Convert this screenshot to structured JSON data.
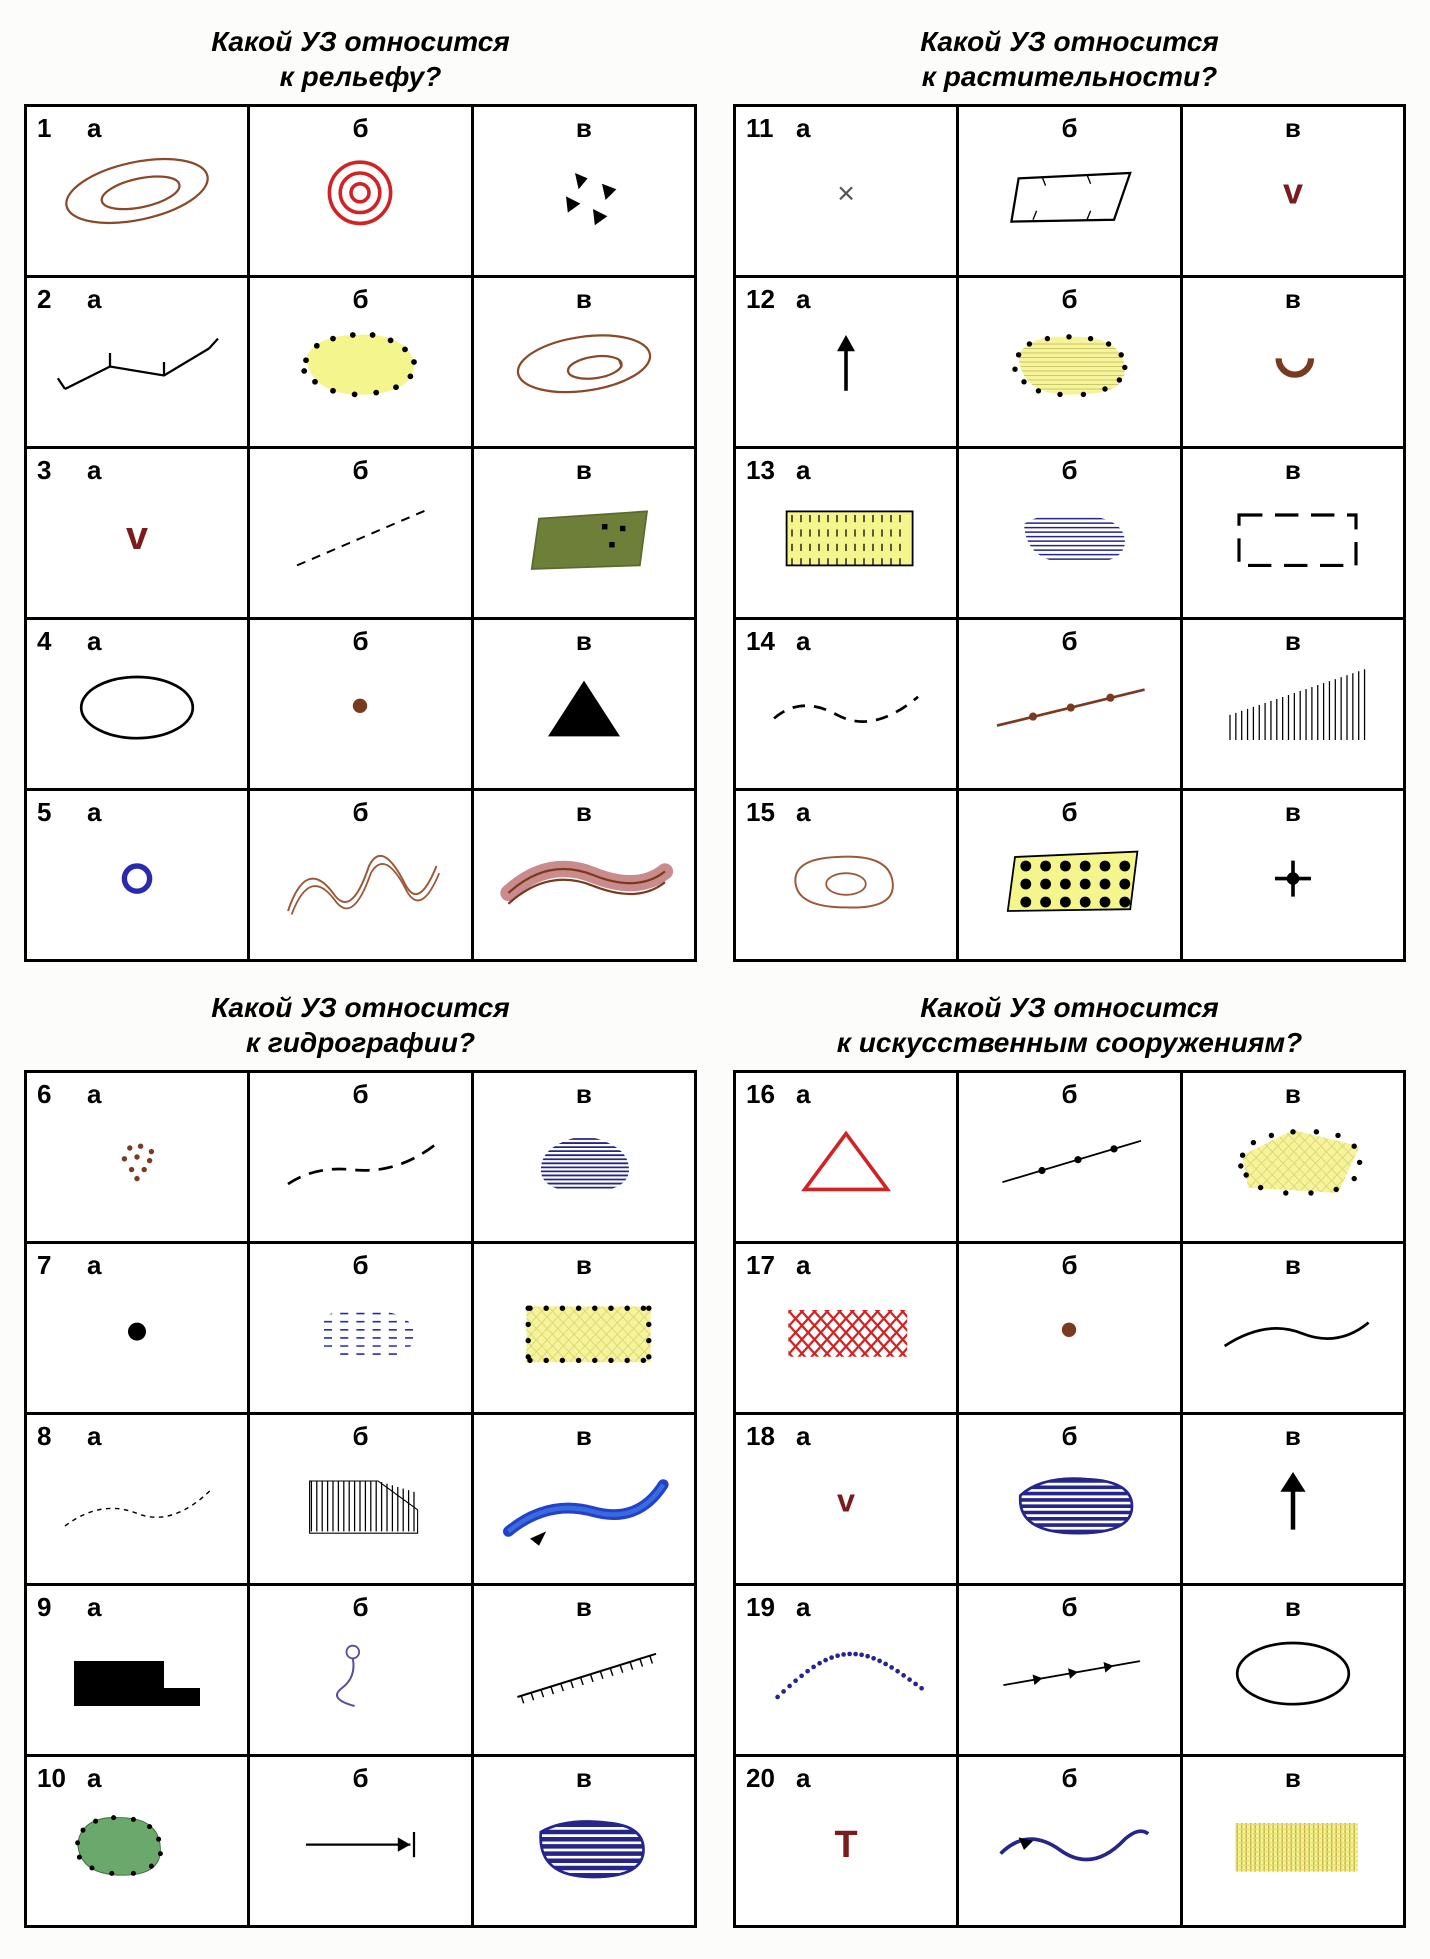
{
  "labels": {
    "a": "а",
    "b": "б",
    "c": "в"
  },
  "palette": {
    "black": "#000000",
    "brown": "#7a3a1f",
    "brown2": "#8a4a2a",
    "sienna": "#9a5a3a",
    "red": "#d12323",
    "darkRed": "#7a1c1c",
    "blue": "#2a2ab0",
    "navyLine": "#25258c",
    "riverBlue": "#2442c8",
    "riverBlueLight": "#3a6ae0",
    "yellowFill": "#f4f58c",
    "yellowFill2": "#f7f39a",
    "olive": "#6e7f3a",
    "oliveDark": "#5a6b2e",
    "green": "#6aa86b",
    "greenBorder": "#3a6e3a",
    "pink": "#c98b8b",
    "grey": "#555555",
    "purpleLine": "#5a4aa0"
  },
  "quadrants": [
    {
      "title": "Какой УЗ относится\nк рельефу?",
      "rows": [
        {
          "n": "1",
          "cells": [
            "brown-double-ellipse",
            "red-concentric-circles",
            "black-triangles-scatter"
          ]
        },
        {
          "n": "2",
          "cells": [
            "black-line-ticks",
            "yellow-blob-dots",
            "brown-ellipse-inner"
          ]
        },
        {
          "n": "3",
          "cells": [
            "brown-v",
            "dashed-line-diag",
            "olive-trapezoid-dots"
          ]
        },
        {
          "n": "4",
          "cells": [
            "black-ellipse-outline",
            "brown-dot-small",
            "black-triangle-solid"
          ]
        },
        {
          "n": "5",
          "cells": [
            "blue-ring",
            "brown-wavy-river",
            "pink-band"
          ]
        }
      ]
    },
    {
      "title": "Какой УЗ относится\nк растительности?",
      "rows": [
        {
          "n": "11",
          "cells": [
            "grey-x",
            "outline-trapezoid-ticks",
            "darkred-v"
          ]
        },
        {
          "n": "12",
          "cells": [
            "black-arrow-up",
            "yellow-blob-hatched",
            "brown-halfcircle"
          ]
        },
        {
          "n": "13",
          "cells": [
            "yellow-rect-vdashes",
            "blue-hstripe-blob",
            "dashed-rect"
          ]
        },
        {
          "n": "14",
          "cells": [
            "black-dashed-curve",
            "brown-line-dots",
            "vertical-lines-fade"
          ]
        },
        {
          "n": "15",
          "cells": [
            "brown-amoeba-inner",
            "yellow-trapezoid-bigdots",
            "black-plus-dot"
          ]
        }
      ]
    },
    {
      "title": "Какой УЗ относится\nк гидрографии?",
      "rows": [
        {
          "n": "6",
          "cells": [
            "brown-dots-cluster",
            "black-dashed-curve-long",
            "blue-hstripe-spade"
          ]
        },
        {
          "n": "7",
          "cells": [
            "black-dot-solid",
            "blue-dash-cloud",
            "yellow-rect-crosshatch"
          ]
        },
        {
          "n": "8",
          "cells": [
            "fine-dashed-curve",
            "vertical-hatch-trapezoid",
            "blue-river-arrow"
          ]
        },
        {
          "n": "9",
          "cells": [
            "black-step-block",
            "purple-squiggle",
            "line-with-ticks"
          ]
        },
        {
          "n": "10",
          "cells": [
            "green-blob-dots",
            "arrow-right-bar",
            "navy-stripe-blob"
          ]
        }
      ]
    },
    {
      "title": "Какой УЗ относится\nк искусственным сооружениям?",
      "rows": [
        {
          "n": "16",
          "cells": [
            "red-triangle-outline",
            "line-with-3dots",
            "yellow-quad-dots"
          ]
        },
        {
          "n": "17",
          "cells": [
            "red-crosshatch-rect",
            "brown-dot-small",
            "black-smooth-curve"
          ]
        },
        {
          "n": "18",
          "cells": [
            "brown-v-small",
            "navy-stripe-oval",
            "black-arrow-up-thick"
          ]
        },
        {
          "n": "19",
          "cells": [
            "dotted-curve",
            "line-arrowheads",
            "black-ellipse-outline"
          ]
        },
        {
          "n": "20",
          "cells": [
            "darkred-T",
            "blue-sine-arrow",
            "yellow-weave-rect"
          ]
        }
      ]
    }
  ]
}
